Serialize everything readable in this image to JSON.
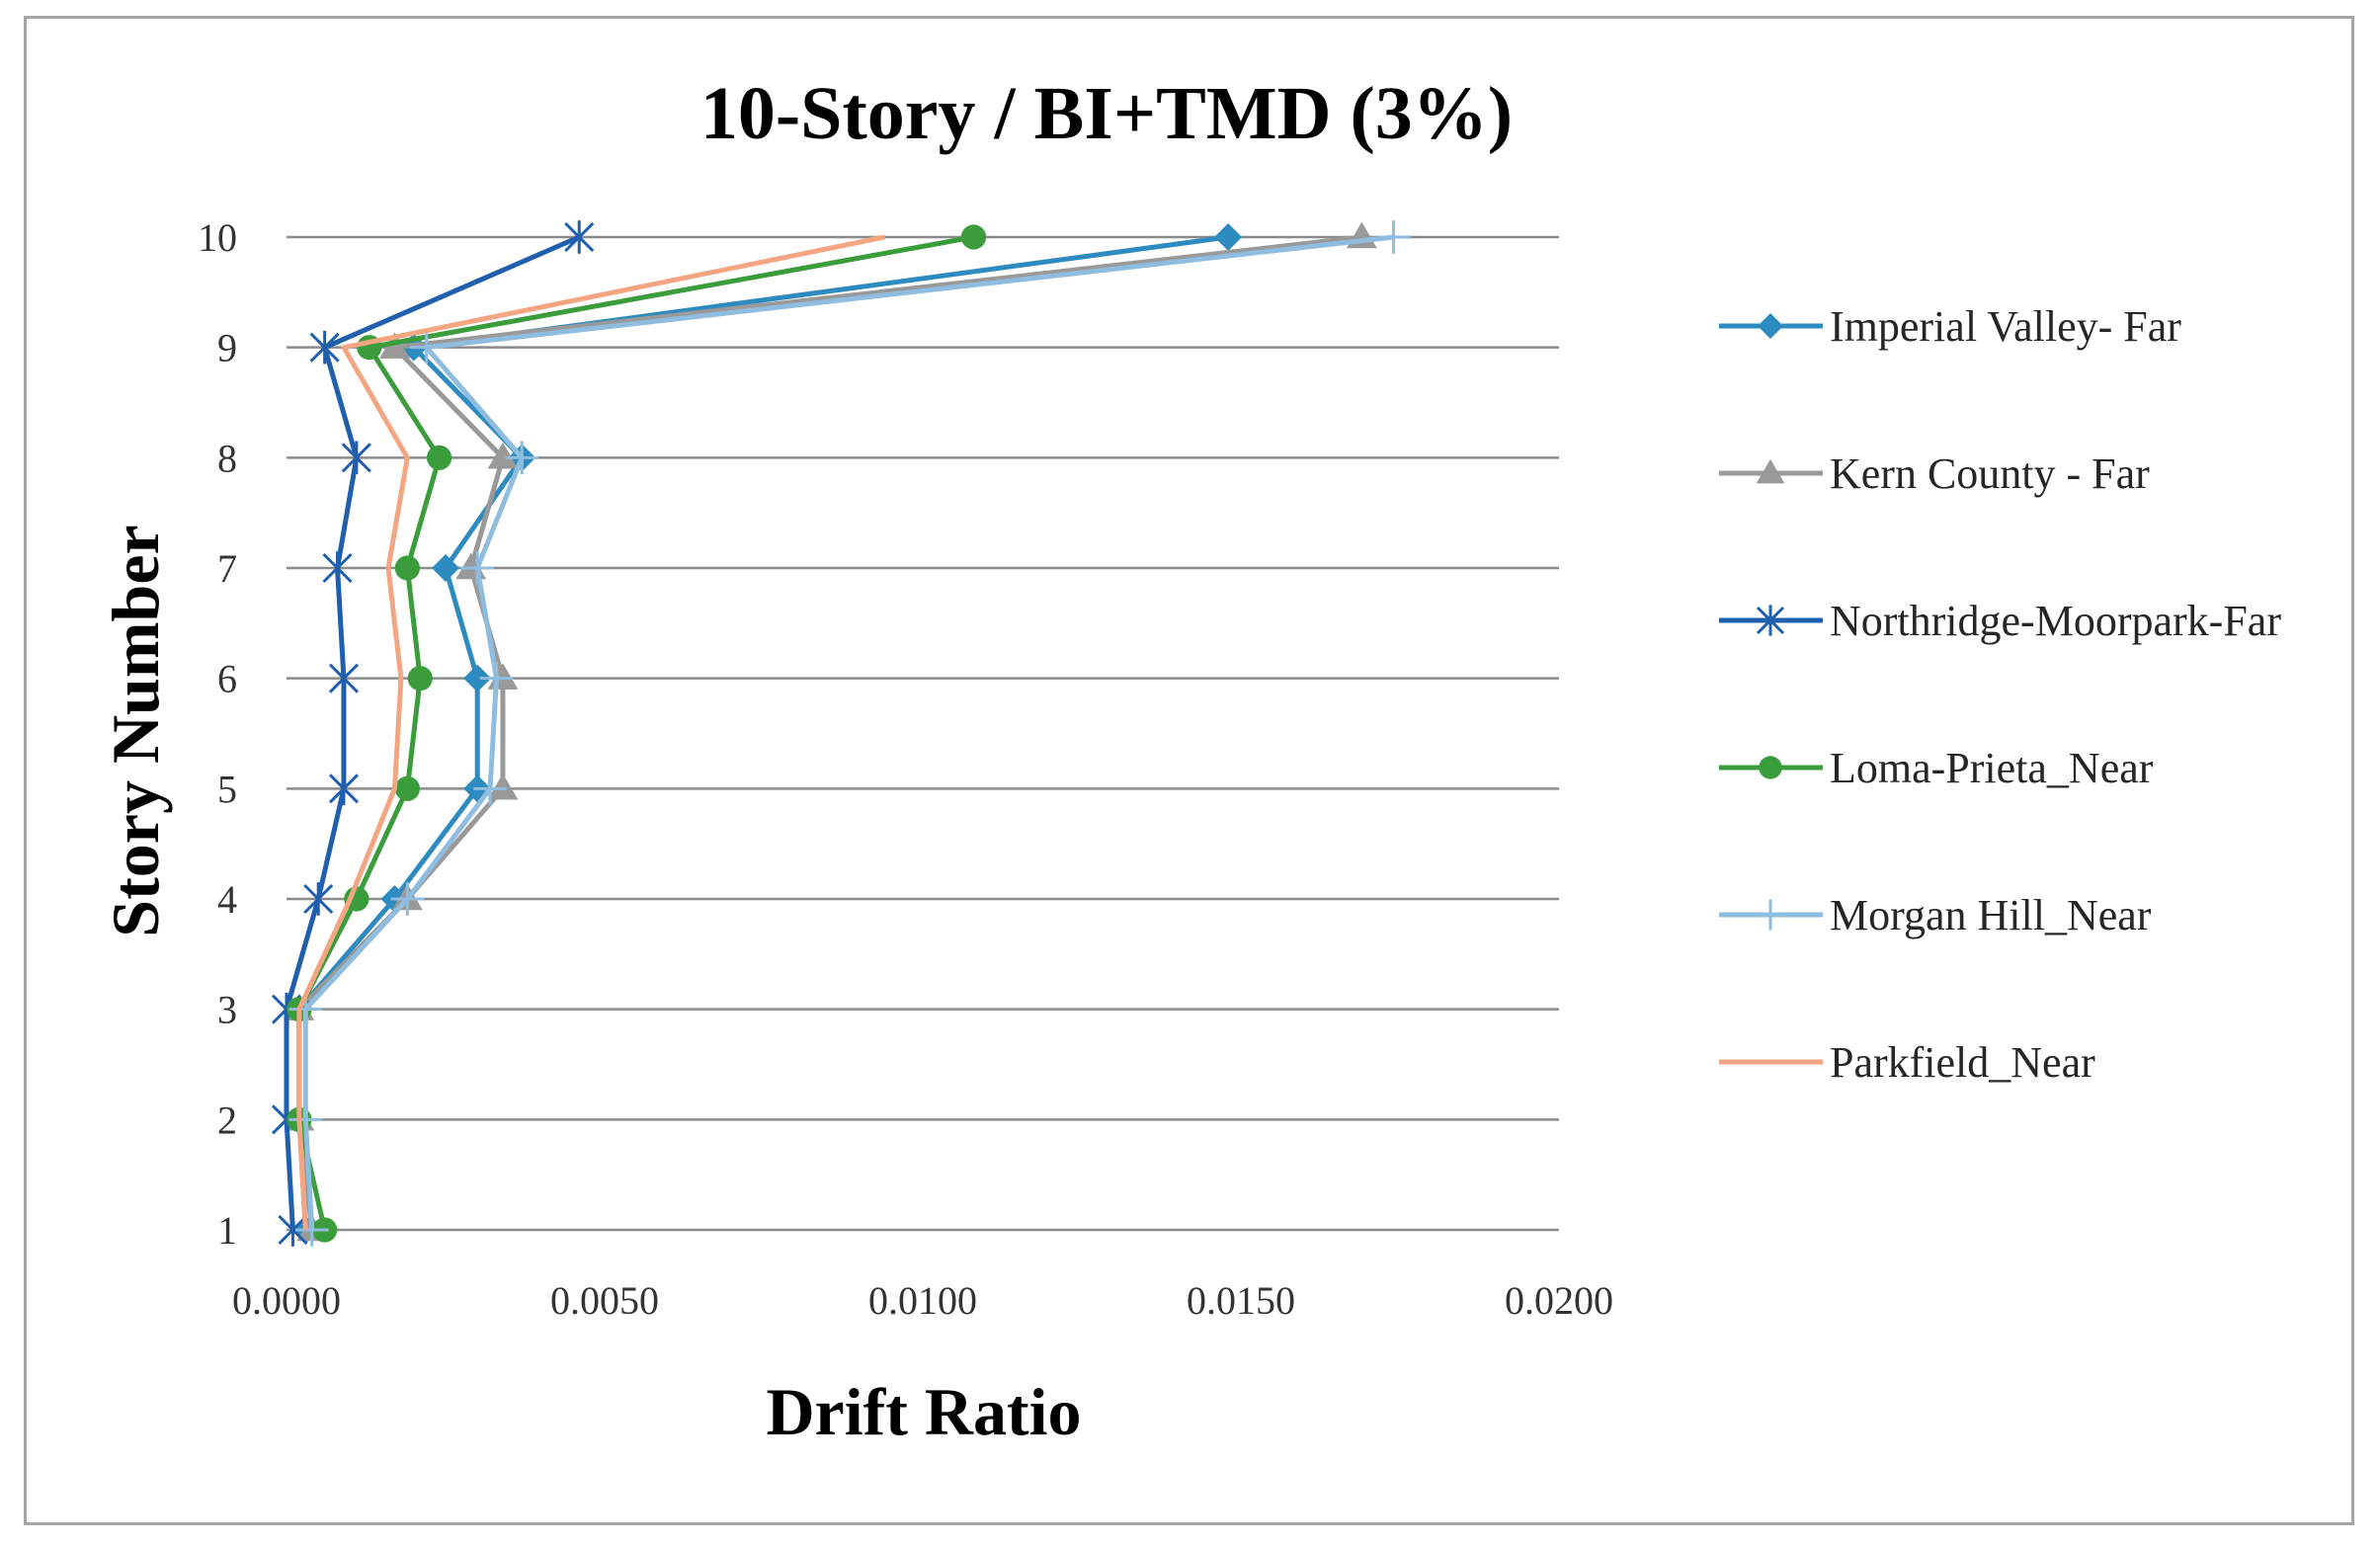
{
  "chart_data": {
    "type": "line",
    "title": "10-Story / BI+TMD  (3%)",
    "xlabel": "Drift Ratio",
    "ylabel": "Story Number",
    "xlim": [
      0,
      0.02
    ],
    "ylim": [
      1,
      10
    ],
    "x_ticks": [
      "0.0000",
      "0.0050",
      "0.0100",
      "0.0150",
      "0.0200"
    ],
    "y_ticks": [
      "1",
      "2",
      "3",
      "4",
      "5",
      "6",
      "7",
      "8",
      "9",
      "10"
    ],
    "grid": "horizontal",
    "legend_position": "right",
    "series": [
      {
        "name": "Imperial Valley- Far",
        "color": "#2e8bc0",
        "marker": "diamond",
        "stories": [
          1,
          2,
          3,
          4,
          5,
          6,
          7,
          8,
          9,
          10
        ],
        "values": [
          0.0003,
          0.0002,
          0.0002,
          0.0017,
          0.003,
          0.003,
          0.0025,
          0.0037,
          0.002,
          0.0148
        ]
      },
      {
        "name": "Kern County - Far",
        "color": "#999999",
        "marker": "triangle",
        "stories": [
          1,
          2,
          3,
          4,
          5,
          6,
          7,
          8,
          9,
          10
        ],
        "values": [
          0.0004,
          0.0002,
          0.0002,
          0.0019,
          0.0034,
          0.0034,
          0.0029,
          0.0034,
          0.0017,
          0.0169
        ]
      },
      {
        "name": "Northridge-Moorpark-Far",
        "color": "#1f5fae",
        "marker": "asterisk",
        "stories": [
          1,
          2,
          3,
          4,
          5,
          6,
          7,
          8,
          9,
          10
        ],
        "values": [
          0.0001,
          0.0,
          0.0,
          0.0005,
          0.0009,
          0.0009,
          0.0008,
          0.0011,
          0.0006,
          0.0046
        ]
      },
      {
        "name": "Loma-Prieta_Near",
        "color": "#3a9c3a",
        "marker": "circle",
        "stories": [
          1,
          2,
          3,
          4,
          5,
          6,
          7,
          8,
          9,
          10
        ],
        "values": [
          0.0006,
          0.0002,
          0.0002,
          0.0011,
          0.0019,
          0.0021,
          0.0019,
          0.0024,
          0.0013,
          0.0108
        ]
      },
      {
        "name": "Morgan Hill_Near",
        "color": "#8fbde0",
        "marker": "plus",
        "stories": [
          1,
          2,
          3,
          4,
          5,
          6,
          7,
          8,
          9,
          10
        ],
        "values": [
          0.0004,
          0.0003,
          0.0003,
          0.0019,
          0.0032,
          0.0033,
          0.003,
          0.0037,
          0.0022,
          0.0174
        ]
      },
      {
        "name": "Parkfield_Near",
        "color": "#f4a582",
        "marker": "none",
        "stories": [
          1,
          2,
          3,
          4,
          5,
          6,
          7,
          8,
          9,
          10
        ],
        "values": [
          0.0003,
          0.0002,
          0.0002,
          0.001,
          0.0017,
          0.0018,
          0.0016,
          0.0019,
          0.0009,
          0.0094
        ]
      }
    ]
  }
}
